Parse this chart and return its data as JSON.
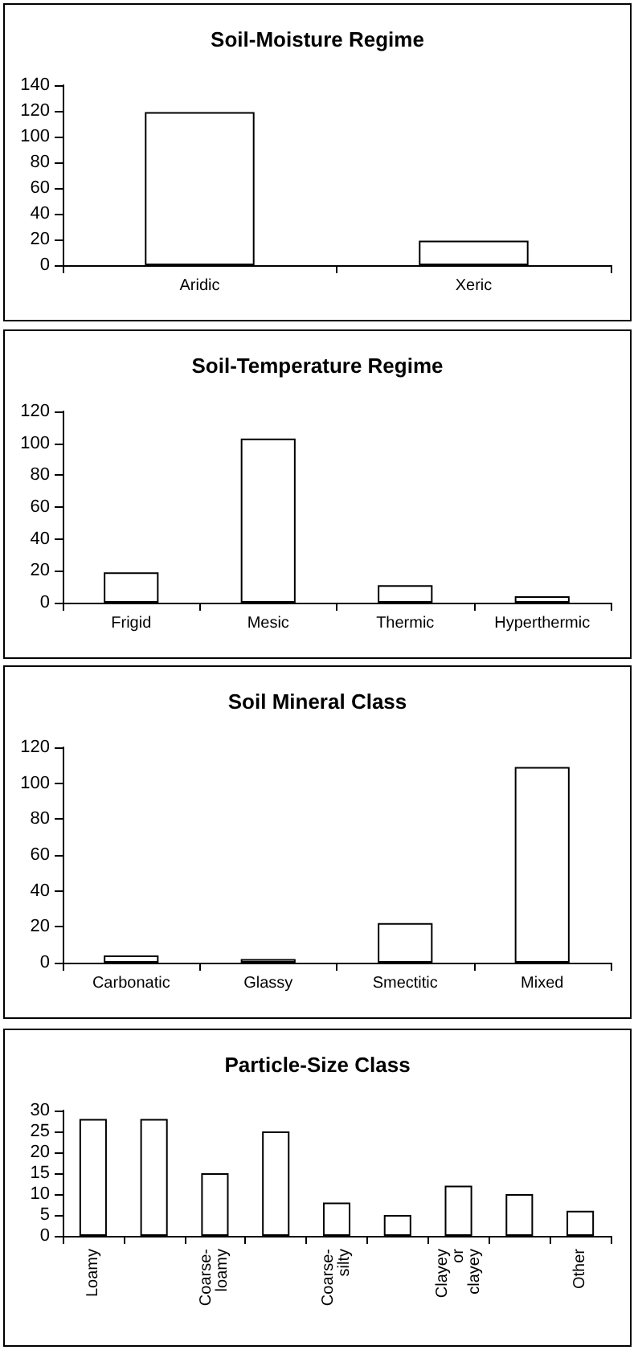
{
  "chart_data": [
    {
      "type": "bar",
      "title": "Soil-Moisture Regime",
      "categories": [
        "Aridic",
        "Xeric"
      ],
      "values": [
        119,
        19
      ],
      "color": "#ffffff",
      "ylim": [
        0,
        140
      ],
      "yticks": [
        0,
        20,
        40,
        60,
        80,
        100,
        120,
        140
      ],
      "grid": false
    },
    {
      "type": "bar",
      "title": "Soil-Temperature Regime",
      "categories": [
        "Frigid",
        "Mesic",
        "Thermic",
        "Hyperthermic"
      ],
      "values": [
        19,
        103,
        11,
        4
      ],
      "color": "#ffffff",
      "ylim": [
        0,
        120
      ],
      "yticks": [
        0,
        20,
        40,
        60,
        80,
        100,
        120
      ],
      "grid": false
    },
    {
      "type": "bar",
      "title": "Soil Mineral Class",
      "categories": [
        "Carbonatic",
        "Glassy",
        "Smectitic",
        "Mixed"
      ],
      "values": [
        4,
        2,
        22,
        109
      ],
      "color": "#ffffff",
      "ylim": [
        0,
        120
      ],
      "yticks": [
        0,
        20,
        40,
        60,
        80,
        100,
        120
      ],
      "grid": false
    },
    {
      "type": "bar",
      "title": "Particle-Size Class",
      "categories": [
        "Loamy",
        null,
        "Coarse-loamy",
        null,
        "Coarse-silty",
        null,
        "Clayey or clayey",
        null,
        "Other"
      ],
      "values": [
        28,
        28,
        15,
        25,
        8,
        5,
        12,
        10,
        6
      ],
      "color": "#ffffff",
      "ylim": [
        0,
        30
      ],
      "yticks": [
        0,
        5,
        10,
        15,
        20,
        25,
        30
      ],
      "grid": false
    }
  ]
}
